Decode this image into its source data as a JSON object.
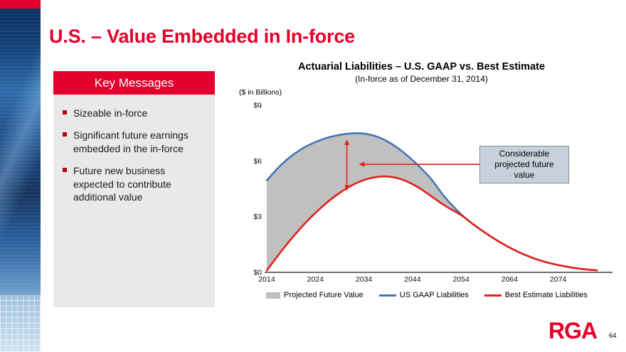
{
  "slide": {
    "title": "U.S. – Value Embedded in In-force",
    "page_number": "64",
    "logo_text": "RGA",
    "accent_red": "#E4002B"
  },
  "key_messages": {
    "header": "Key Messages",
    "items": [
      "Sizeable in-force",
      "Significant future earnings embedded in the in-force",
      "Future new business expected to contribute additional value"
    ]
  },
  "chart_data": {
    "type": "area",
    "title": "Actuarial Liabilities – U.S. GAAP vs. Best Estimate",
    "subtitle": "(In-force as of December 31, 2014)",
    "unit_label": "($ in Billions)",
    "xlim": [
      2014,
      2084
    ],
    "ylim": [
      0,
      9
    ],
    "xticks": [
      2014,
      2024,
      2034,
      2044,
      2054,
      2064,
      2074
    ],
    "yticks": [
      {
        "label": "$0",
        "value": 0
      },
      {
        "label": "$3",
        "value": 3
      },
      {
        "label": "$6",
        "value": 6
      },
      {
        "label": "$9",
        "value": 9
      }
    ],
    "x": [
      2014,
      2016,
      2018,
      2020,
      2022,
      2024,
      2026,
      2028,
      2030,
      2032,
      2034,
      2036,
      2038,
      2040,
      2042,
      2044,
      2046,
      2048,
      2050,
      2052,
      2054,
      2056,
      2058,
      2060,
      2062,
      2064,
      2066,
      2068,
      2070,
      2072,
      2074,
      2076,
      2078,
      2080,
      2082
    ],
    "series": [
      {
        "name": "US GAAP Liabilities",
        "color": "#4576B5",
        "values": [
          4.95,
          5.55,
          6.05,
          6.45,
          6.78,
          7.02,
          7.22,
          7.36,
          7.45,
          7.5,
          7.48,
          7.38,
          7.18,
          6.88,
          6.5,
          6.05,
          5.55,
          5.0,
          4.25,
          3.65,
          3.12,
          2.68,
          2.3,
          1.95,
          1.62,
          1.33,
          1.07,
          0.85,
          0.66,
          0.51,
          0.39,
          0.29,
          0.21,
          0.15,
          0.11
        ]
      },
      {
        "name": "Best Estimate Liabilities",
        "color": "#E32119",
        "values": [
          0.1,
          0.8,
          1.48,
          2.1,
          2.68,
          3.2,
          3.68,
          4.1,
          4.46,
          4.76,
          4.98,
          5.12,
          5.18,
          5.14,
          5.0,
          4.76,
          4.45,
          4.08,
          3.7,
          3.38,
          3.1,
          2.68,
          2.3,
          1.95,
          1.62,
          1.33,
          1.07,
          0.85,
          0.66,
          0.51,
          0.39,
          0.29,
          0.21,
          0.15,
          0.11
        ]
      }
    ],
    "fill_between": {
      "name": "Projected Future Value",
      "color": "#C0C0C0"
    },
    "annotations": {
      "callout": {
        "text": "Considerable projected future value"
      },
      "vertical_arrow": {
        "x": 2030.5,
        "y1": 4.4,
        "y2": 7.15,
        "color": "#E32119"
      },
      "horizontal_arrow": {
        "y": 5.82,
        "x_tail": 2058,
        "x_head": 2033,
        "color": "#E32119"
      }
    },
    "legend": [
      {
        "label": "Projected Future Value",
        "color": "#C0C0C0",
        "kind": "area"
      },
      {
        "label": "US GAAP Liabilities",
        "color": "#4576B5",
        "kind": "line"
      },
      {
        "label": "Best Estimate Liabilities",
        "color": "#E32119",
        "kind": "line"
      }
    ]
  }
}
